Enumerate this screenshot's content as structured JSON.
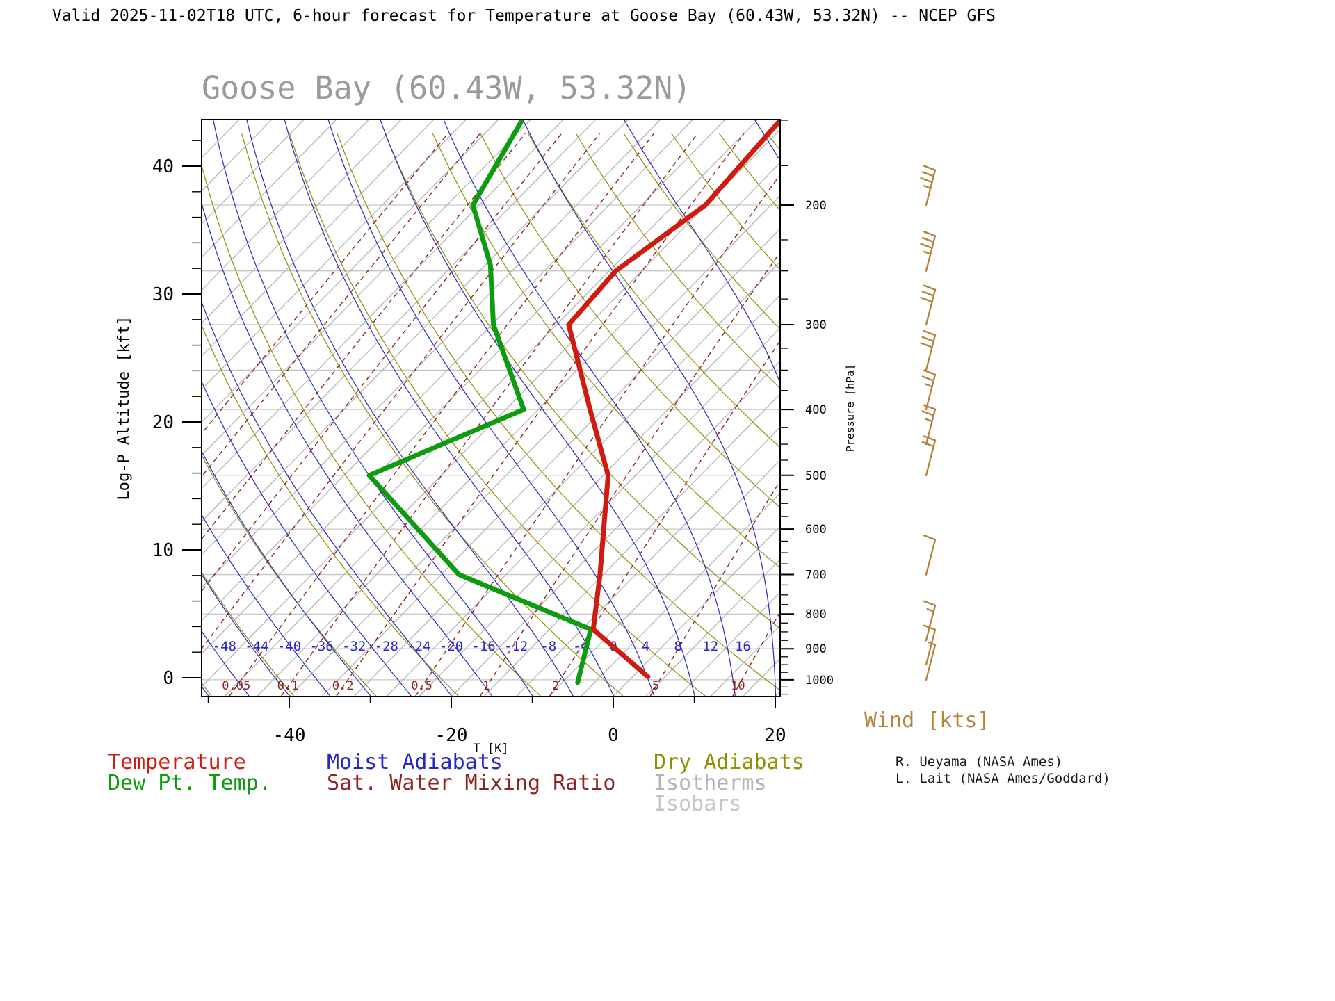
{
  "header": {
    "text": "Valid 2025-11-02T18 UTC, 6-hour forecast for Temperature at Goose Bay (60.43W, 53.32N) -- NCEP GFS"
  },
  "title": "Goose Bay (60.43W, 53.32N)",
  "axes": {
    "left_label": "Log-P Altitude [kft]",
    "left_ticks": [
      0,
      10,
      20,
      30,
      40
    ],
    "right_label": "Pressure [hPa]",
    "right_ticks": [
      200,
      300,
      400,
      500,
      600,
      700,
      800,
      900,
      1000
    ],
    "bottom_label": "T [K]",
    "bottom_ticks": [
      -40,
      -20,
      0,
      20
    ]
  },
  "legend": {
    "temperature": "Temperature",
    "dewpoint": "Dew Pt. Temp.",
    "moist_adiabats": "Moist Adiabats",
    "mixing_ratio": "Sat. Water Mixing Ratio",
    "dry_adiabats": "Dry Adiabats",
    "isotherms": "Isotherms",
    "isobars": "Isobars"
  },
  "wind_label": "Wind [kts]",
  "credits": {
    "line1": "R. Ueyama (NASA Ames)",
    "line2": "L. Lait (NASA Ames/Goddard)"
  },
  "colors": {
    "temperature": "#cf1b10",
    "dewpoint": "#0d9c10",
    "moist_adiabat": "#2727c8",
    "dry_adiabat": "#8f8f00",
    "isotherm": "#b4b4b4",
    "isobar": "#c6c6c6",
    "mixing_ratio": "#8e2323",
    "wind": "#b5833c",
    "title": "#9a9a9a",
    "header": "#000000",
    "credits": "#1a1a1a"
  },
  "chart_data": {
    "type": "line",
    "subtype": "skewT-logP-sounding",
    "title": "Goose Bay (60.43W, 53.32N)",
    "xlabel": "T [K]",
    "ylabel_left": "Log-P Altitude [kft]",
    "ylabel_right": "Pressure [hPa]",
    "x_ticks_c": [
      -40,
      -20,
      0,
      20
    ],
    "pressure_range_hpa": [
      150,
      1057
    ],
    "altitude_range_kft": [
      0,
      43
    ],
    "skew_deg": 45,
    "grid": "full-thermodynamic-background",
    "isobars": [
      200,
      250,
      300,
      350,
      400,
      500,
      600,
      700,
      800,
      900,
      1000
    ],
    "isotherms": {
      "start": -116,
      "end": 36,
      "step": 4,
      "labeled": [
        -48,
        -44,
        -40,
        -36,
        -32,
        -28,
        -24,
        -20,
        -16,
        -12,
        -8,
        -4,
        0,
        4,
        8,
        12,
        16
      ]
    },
    "dry_adiabats_theta_k": {
      "start": 220,
      "end": 530,
      "step": 10
    },
    "moist_adiabats_t1050_c": {
      "start": -60,
      "end": 40,
      "step": 5
    },
    "mixing_ratio_g_kg": [
      0.001,
      0.002,
      0.005,
      0.01,
      0.02,
      0.05,
      0.1,
      0.2,
      0.5,
      1,
      2,
      5,
      10,
      20
    ],
    "mixing_ratio_labeled": [
      "0.05",
      "0.1",
      "0.2",
      "0.5",
      "1",
      "2",
      "5",
      "10"
    ],
    "series": [
      {
        "name": "Temperature",
        "color_key": "temperature",
        "points_p_hpa_t_c": [
          {
            "p": 990,
            "t": 1.9
          },
          {
            "p": 843,
            "t": -10.6
          },
          {
            "p": 700,
            "t": -16.4
          },
          {
            "p": 500,
            "t": -27.4
          },
          {
            "p": 400,
            "t": -37.6
          },
          {
            "p": 300,
            "t": -50.5
          },
          {
            "p": 250,
            "t": -51.2
          },
          {
            "p": 200,
            "t": -48.1
          },
          {
            "p": 151,
            "t": -49.1
          }
        ]
      },
      {
        "name": "Dew Pt. Temp.",
        "color_key": "dewpoint",
        "points_p_hpa_t_c": [
          {
            "p": 1009,
            "t": -6.1
          },
          {
            "p": 843,
            "t": -10.9
          },
          {
            "p": 700,
            "t": -33.8
          },
          {
            "p": 500,
            "t": -56.9
          },
          {
            "p": 400,
            "t": -45.8
          },
          {
            "p": 300,
            "t": -59.8
          },
          {
            "p": 245,
            "t": -67.4
          },
          {
            "p": 200,
            "t": -76.8
          },
          {
            "p": 151,
            "t": -80.9
          }
        ]
      }
    ],
    "wind_barbs_kts": [
      {
        "p": 200,
        "kts": 35
      },
      {
        "p": 250,
        "kts": 35
      },
      {
        "p": 300,
        "kts": 30
      },
      {
        "p": 350,
        "kts": 30
      },
      {
        "p": 400,
        "kts": 25
      },
      {
        "p": 450,
        "kts": 25
      },
      {
        "p": 500,
        "kts": 20
      },
      {
        "p": 700,
        "kts": 10
      },
      {
        "p": 875,
        "kts": 15
      },
      {
        "p": 950,
        "kts": 10
      },
      {
        "p": 1000,
        "kts": 5
      }
    ]
  }
}
